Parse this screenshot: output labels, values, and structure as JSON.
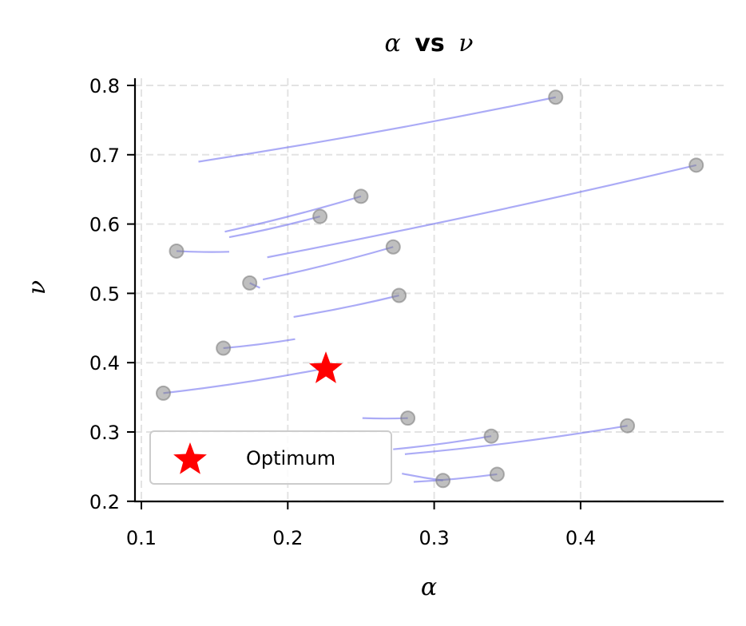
{
  "chart_data": {
    "type": "scatter",
    "title": "α vs ν",
    "title_parts": {
      "left": "α",
      "middle": "vs",
      "right": "ν"
    },
    "xlabel": "α",
    "ylabel": "ν",
    "xlim": [
      0.095,
      0.495
    ],
    "ylim": [
      0.2,
      0.81
    ],
    "xticks": [
      0.1,
      0.2,
      0.3,
      0.4
    ],
    "xtick_labels": [
      "0.1",
      "0.2",
      "0.3",
      "0.4"
    ],
    "yticks": [
      0.2,
      0.3,
      0.4,
      0.5,
      0.6,
      0.7,
      0.8
    ],
    "ytick_labels": [
      "0.2",
      "0.3",
      "0.4",
      "0.5",
      "0.6",
      "0.7",
      "0.8"
    ],
    "grid": true,
    "legend": {
      "position": "lower left",
      "entries": [
        "Optimum"
      ]
    },
    "colors": {
      "points": "#808080",
      "trajectories": "#6666ee",
      "optimum": "#ff0000"
    },
    "series": [
      {
        "name": "Samples",
        "marker": "circle",
        "points": [
          {
            "alpha": 0.383,
            "nu": 0.783
          },
          {
            "alpha": 0.479,
            "nu": 0.685
          },
          {
            "alpha": 0.25,
            "nu": 0.64
          },
          {
            "alpha": 0.222,
            "nu": 0.611
          },
          {
            "alpha": 0.124,
            "nu": 0.561
          },
          {
            "alpha": 0.272,
            "nu": 0.567
          },
          {
            "alpha": 0.174,
            "nu": 0.515
          },
          {
            "alpha": 0.276,
            "nu": 0.497
          },
          {
            "alpha": 0.156,
            "nu": 0.421
          },
          {
            "alpha": 0.115,
            "nu": 0.356
          },
          {
            "alpha": 0.282,
            "nu": 0.32
          },
          {
            "alpha": 0.339,
            "nu": 0.294
          },
          {
            "alpha": 0.432,
            "nu": 0.309
          },
          {
            "alpha": 0.306,
            "nu": 0.23
          },
          {
            "alpha": 0.343,
            "nu": 0.239
          }
        ]
      },
      {
        "name": "Trajectories",
        "type": "line",
        "segments": [
          {
            "from": [
              0.383,
              0.783
            ],
            "to": [
              0.139,
              0.69
            ]
          },
          {
            "from": [
              0.479,
              0.685
            ],
            "to": [
              0.186,
              0.552
            ]
          },
          {
            "from": [
              0.25,
              0.64
            ],
            "to": [
              0.157,
              0.589
            ]
          },
          {
            "from": [
              0.222,
              0.611
            ],
            "to": [
              0.16,
              0.581
            ]
          },
          {
            "from": [
              0.124,
              0.561
            ],
            "to": [
              0.16,
              0.56
            ]
          },
          {
            "from": [
              0.272,
              0.567
            ],
            "to": [
              0.183,
              0.52
            ]
          },
          {
            "from": [
              0.174,
              0.515
            ],
            "to": [
              0.181,
              0.508
            ]
          },
          {
            "from": [
              0.276,
              0.497
            ],
            "to": [
              0.204,
              0.466
            ]
          },
          {
            "from": [
              0.156,
              0.421
            ],
            "to": [
              0.205,
              0.434
            ]
          },
          {
            "from": [
              0.115,
              0.356
            ],
            "to": [
              0.226,
              0.392
            ]
          },
          {
            "from": [
              0.282,
              0.32
            ],
            "to": [
              0.251,
              0.32
            ]
          },
          {
            "from": [
              0.339,
              0.294
            ],
            "to": [
              0.272,
              0.275
            ]
          },
          {
            "from": [
              0.432,
              0.309
            ],
            "to": [
              0.28,
              0.268
            ]
          },
          {
            "from": [
              0.306,
              0.23
            ],
            "to": [
              0.278,
              0.24
            ]
          },
          {
            "from": [
              0.343,
              0.239
            ],
            "to": [
              0.286,
              0.228
            ]
          }
        ]
      },
      {
        "name": "Optimum",
        "marker": "star",
        "points": [
          {
            "alpha": 0.226,
            "nu": 0.392
          }
        ]
      }
    ]
  }
}
